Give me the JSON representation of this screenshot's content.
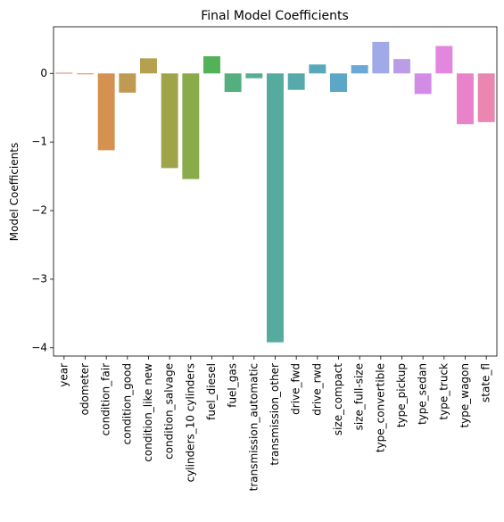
{
  "chart_data": {
    "type": "bar",
    "title": "Final Model Coefficients",
    "xlabel": "",
    "ylabel": "Model Coefficients",
    "ylim": [
      -4.12,
      0.68
    ],
    "yticks": [
      0,
      -1,
      -2,
      -3,
      -4
    ],
    "ytick_labels": [
      "0",
      "−1",
      "−2",
      "−3",
      "−4"
    ],
    "grid": false,
    "categories": [
      "year",
      "odometer",
      "condition_fair",
      "condition_good",
      "condition_like new",
      "condition_salvage",
      "cylinders_10 cylinders",
      "fuel_diesel",
      "fuel_gas",
      "transmission_automatic",
      "transmission_other",
      "drive_fwd",
      "drive_rwd",
      "size_compact",
      "size_full-size",
      "type_convertible",
      "type_pickup",
      "type_sedan",
      "type_truck",
      "type_wagon",
      "state_fl"
    ],
    "values": [
      0.01,
      0.0,
      -1.12,
      -0.28,
      0.22,
      -1.38,
      -1.54,
      0.25,
      -0.27,
      -0.07,
      -3.92,
      -0.24,
      0.13,
      -0.27,
      0.12,
      0.46,
      0.21,
      -0.3,
      0.4,
      -0.74,
      -0.71
    ],
    "colors": [
      "#e1807a",
      "#d68a5a",
      "#d4914f",
      "#c09953",
      "#b5a050",
      "#a0a448",
      "#8aab49",
      "#53b158",
      "#55ae7e",
      "#56ad90",
      "#55ab9d",
      "#57aaab",
      "#58a8b9",
      "#5ca6c6",
      "#6aa8da",
      "#a0aae8",
      "#bb9de7",
      "#d28ce6",
      "#e386de",
      "#e883cb",
      "#e987b0"
    ]
  }
}
